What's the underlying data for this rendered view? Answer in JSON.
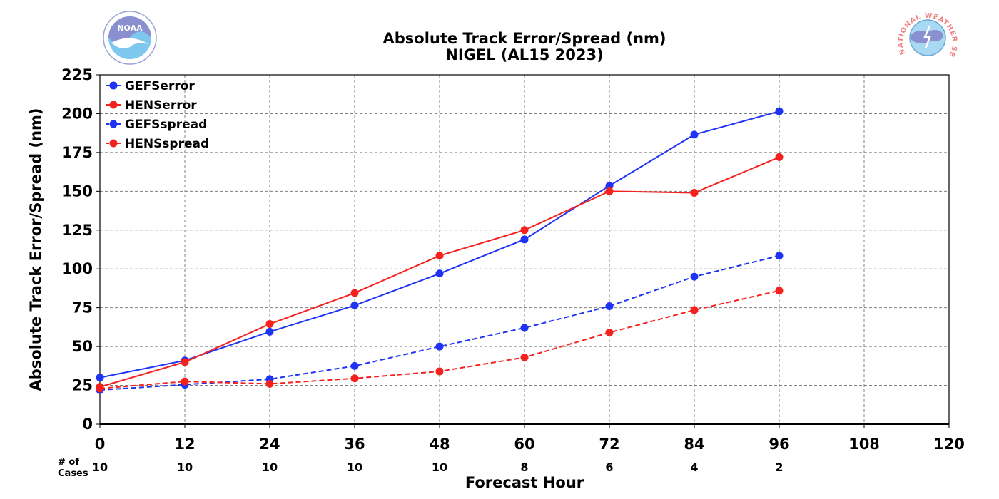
{
  "chart_data": {
    "type": "line",
    "title": "Absolute Track Error/Spread (nm)",
    "subtitle": "NIGEL (AL15 2023)",
    "xlabel": "Forecast Hour",
    "ylabel": "Absolute Track Error/Spread (nm)",
    "xlim": [
      0,
      120
    ],
    "ylim": [
      0,
      225
    ],
    "x_ticks": [
      0,
      12,
      24,
      36,
      48,
      60,
      72,
      84,
      96,
      108,
      120
    ],
    "y_ticks": [
      0,
      25,
      50,
      75,
      100,
      125,
      150,
      175,
      200,
      225
    ],
    "grid": true,
    "legend_position": "top-left",
    "cases_label_line1": "# of",
    "cases_label_line2": "Cases",
    "cases": [
      {
        "x": 0,
        "n": "10"
      },
      {
        "x": 12,
        "n": "10"
      },
      {
        "x": 24,
        "n": "10"
      },
      {
        "x": 36,
        "n": "10"
      },
      {
        "x": 48,
        "n": "10"
      },
      {
        "x": 60,
        "n": "8"
      },
      {
        "x": 72,
        "n": "6"
      },
      {
        "x": 84,
        "n": "4"
      },
      {
        "x": 96,
        "n": "2"
      }
    ],
    "series": [
      {
        "name": "GEFSerror",
        "color": "#1f33f5",
        "dashed": false,
        "x": [
          0,
          12,
          24,
          36,
          48,
          60,
          72,
          84,
          96
        ],
        "values": [
          30,
          41,
          59.5,
          76.5,
          97,
          119,
          153.5,
          186.5,
          201.5
        ]
      },
      {
        "name": "HENSerror",
        "color": "#f5211f",
        "dashed": false,
        "x": [
          0,
          12,
          24,
          36,
          48,
          60,
          72,
          84,
          96
        ],
        "values": [
          24,
          40,
          64.5,
          84.5,
          108.5,
          125,
          150,
          149,
          172
        ]
      },
      {
        "name": "GEFSspread",
        "color": "#1f33f5",
        "dashed": true,
        "x": [
          0,
          12,
          24,
          36,
          48,
          60,
          72,
          84,
          96
        ],
        "values": [
          22,
          25.5,
          29,
          37.5,
          50,
          62,
          76,
          95,
          108.5
        ]
      },
      {
        "name": "HENSspread",
        "color": "#f5211f",
        "dashed": true,
        "x": [
          0,
          12,
          24,
          36,
          48,
          60,
          72,
          84,
          96
        ],
        "values": [
          23,
          27.5,
          26,
          29.5,
          34,
          43,
          59,
          73.5,
          86
        ]
      }
    ]
  },
  "logos": {
    "left": {
      "text": "NOAA",
      "icon": "noaa-logo",
      "color": "#7ec8f0"
    },
    "right": {
      "text": "NATIONAL WEATHER SERVICE",
      "icon": "nws-logo",
      "color": "#f08080"
    }
  }
}
